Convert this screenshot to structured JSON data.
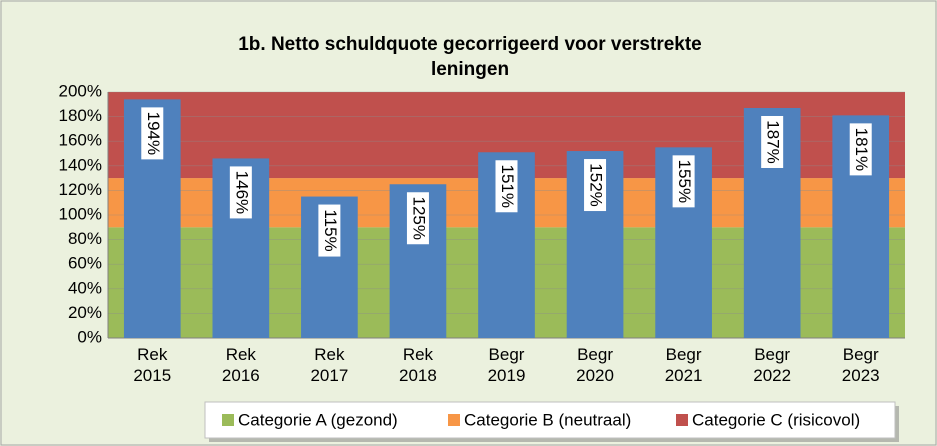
{
  "chart_data": {
    "type": "bar",
    "title": "1b. Netto schuldquote gecorrigeerd voor verstrekte leningen",
    "categories": [
      "Rek 2015",
      "Rek 2016",
      "Rek 2017",
      "Rek 2018",
      "Begr 2019",
      "Begr 2020",
      "Begr 2021",
      "Begr 2022",
      "Begr 2023"
    ],
    "values": [
      194,
      146,
      115,
      125,
      151,
      152,
      155,
      187,
      181
    ],
    "value_labels": [
      "194%",
      "146%",
      "115%",
      "125%",
      "151%",
      "152%",
      "155%",
      "187%",
      "181%"
    ],
    "color": "#4f81bd",
    "bands": [
      {
        "name": "Categorie A (gezond)",
        "color": "#9bbb59",
        "from": 0,
        "to": 90
      },
      {
        "name": "Categorie B (neutraal)",
        "color": "#f79646",
        "from": 90,
        "to": 130
      },
      {
        "name": "Categorie C (risicovol)",
        "color": "#c0504d",
        "from": 130,
        "to": 200
      }
    ],
    "ylim": [
      0,
      200
    ],
    "yticks": [
      {
        "value": 0,
        "label": "0%"
      },
      {
        "value": 20,
        "label": "20%"
      },
      {
        "value": 40,
        "label": "40%"
      },
      {
        "value": 60,
        "label": "60%"
      },
      {
        "value": 80,
        "label": "80%"
      },
      {
        "value": 100,
        "label": "100%"
      },
      {
        "value": 120,
        "label": "120%"
      },
      {
        "value": 140,
        "label": "140%"
      },
      {
        "value": 160,
        "label": "160%"
      },
      {
        "value": 180,
        "label": "180%"
      },
      {
        "value": 200,
        "label": "200%"
      }
    ],
    "grid": true,
    "legend": "bottom"
  }
}
